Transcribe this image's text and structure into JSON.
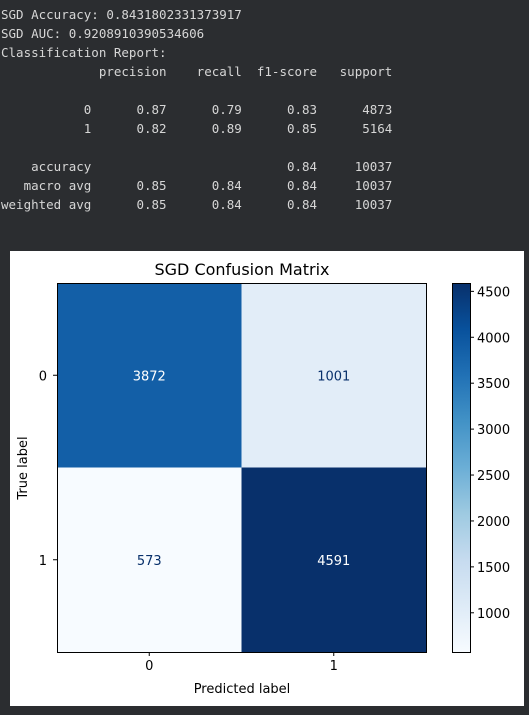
{
  "console": {
    "accuracy_line": "SGD Accuracy: 0.8431802331373917",
    "auc_line": "SGD AUC: 0.9208910390534606",
    "report_title": "Classification Report:",
    "report": {
      "header": [
        "precision",
        "recall",
        "f1-score",
        "support"
      ],
      "rows": [
        {
          "label": "0",
          "precision": "0.87",
          "recall": "0.79",
          "f1": "0.83",
          "support": "4873"
        },
        {
          "label": "1",
          "precision": "0.82",
          "recall": "0.89",
          "f1": "0.85",
          "support": "5164"
        }
      ],
      "summary": [
        {
          "label": "accuracy",
          "precision": "",
          "recall": "",
          "f1": "0.84",
          "support": "10037"
        },
        {
          "label": "macro avg",
          "precision": "0.85",
          "recall": "0.84",
          "f1": "0.84",
          "support": "10037"
        },
        {
          "label": "weighted avg",
          "precision": "0.85",
          "recall": "0.84",
          "f1": "0.84",
          "support": "10037"
        }
      ]
    }
  },
  "chart_data": {
    "type": "heatmap",
    "title": "SGD Confusion Matrix",
    "xlabel": "Predicted label",
    "ylabel": "True label",
    "x_categories": [
      "0",
      "1"
    ],
    "y_categories": [
      "0",
      "1"
    ],
    "matrix": [
      [
        3872,
        1001
      ],
      [
        573,
        4591
      ]
    ],
    "colormap": "Blues",
    "colorbar": {
      "min": 573,
      "max": 4591,
      "ticks": [
        1000,
        1500,
        2000,
        2500,
        3000,
        3500,
        4000,
        4500
      ]
    },
    "colors": {
      "low": "#f7fbff",
      "high": "#08306b",
      "text_dark_cells": "#ffffff",
      "text_light_cells": "#08306b"
    }
  }
}
